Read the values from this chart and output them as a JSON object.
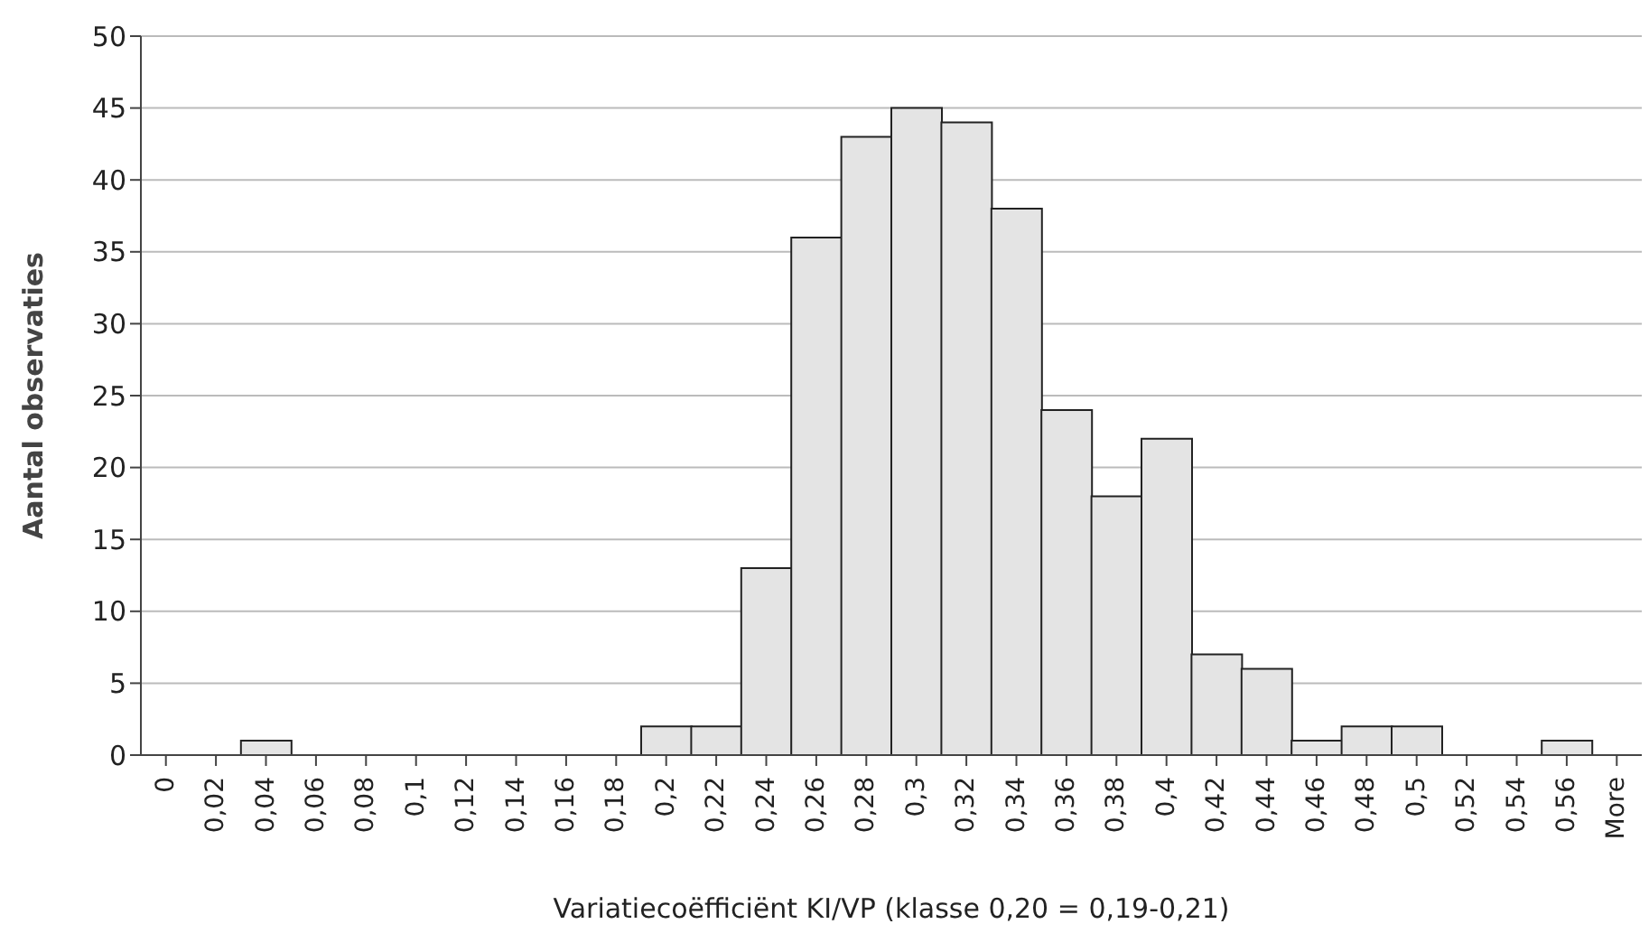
{
  "chart_data": {
    "type": "bar",
    "xlabel": "Variatiecoëfficiënt KI/VP (klasse 0,20 = 0,19-0,21)",
    "ylabel": "Aantal observaties",
    "categories": [
      "0",
      "0,02",
      "0,04",
      "0,06",
      "0,08",
      "0,1",
      "0,12",
      "0,14",
      "0,16",
      "0,18",
      "0,2",
      "0,22",
      "0,24",
      "0,26",
      "0,28",
      "0,3",
      "0,32",
      "0,34",
      "0,36",
      "0,38",
      "0,4",
      "0,42",
      "0,44",
      "0,46",
      "0,48",
      "0,5",
      "0,52",
      "0,54",
      "0,56",
      "More"
    ],
    "values": [
      0,
      0,
      1,
      0,
      0,
      0,
      0,
      0,
      0,
      0,
      2,
      2,
      13,
      36,
      43,
      45,
      44,
      38,
      24,
      18,
      22,
      7,
      6,
      1,
      2,
      2,
      0,
      0,
      1,
      0
    ],
    "color": "#e4e4e4",
    "ylim": [
      0,
      50
    ],
    "yticks": [
      0,
      5,
      10,
      15,
      20,
      25,
      30,
      35,
      40,
      45,
      50
    ],
    "grid": "y",
    "legend": false
  }
}
